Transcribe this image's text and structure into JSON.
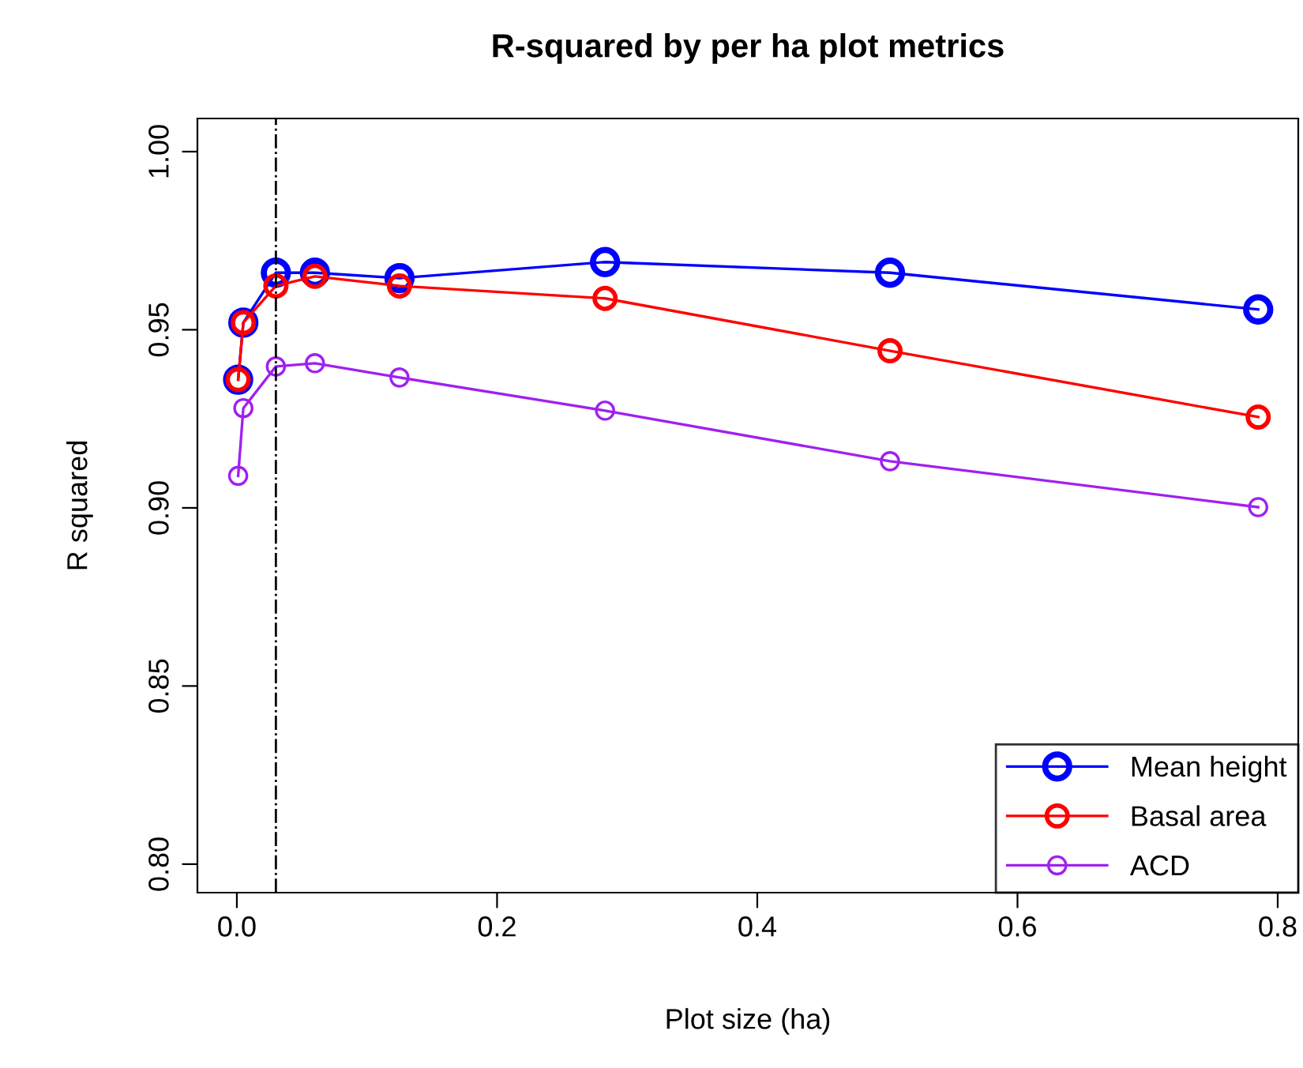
{
  "chart_data": {
    "type": "line",
    "title": "R-squared by per ha plot metrics",
    "xlabel": "Plot size (ha)",
    "ylabel": "R squared",
    "x": [
      0.001,
      0.005,
      0.03,
      0.06,
      0.125,
      0.283,
      0.502,
      0.785
    ],
    "series": [
      {
        "name": "Mean height",
        "color": "#0000ff",
        "values": [
          0.936,
          0.952,
          0.966,
          0.966,
          0.9645,
          0.969,
          0.966,
          0.9557
        ]
      },
      {
        "name": "Basal area",
        "color": "#ff0000",
        "values": [
          0.936,
          0.952,
          0.9623,
          0.965,
          0.9623,
          0.9588,
          0.9441,
          0.9255
        ]
      },
      {
        "name": "ACD",
        "color": "#a020f0",
        "values": [
          0.909,
          0.928,
          0.9397,
          0.9406,
          0.9366,
          0.9273,
          0.9131,
          0.9002
        ]
      }
    ],
    "xlim": [
      -0.0303,
      0.8158
    ],
    "ylim": [
      0.792,
      1.0093
    ],
    "xticks": [
      {
        "value": 0,
        "label": "0.0"
      },
      0.2,
      0.4,
      0.6,
      0.8
    ],
    "yticks": [
      {
        "value": 0.8,
        "label": "0.80"
      },
      0.85,
      {
        "value": 0.9,
        "label": "0.90"
      },
      0.95,
      {
        "value": 1.0,
        "label": "1.00"
      }
    ],
    "ref_lines": [
      {
        "axis": "x",
        "value": 0.03,
        "color": "#000000",
        "line_style": "dashdot"
      }
    ],
    "marker": "circle",
    "line_style": "solid",
    "legend": "bottom right",
    "grid": false
  }
}
